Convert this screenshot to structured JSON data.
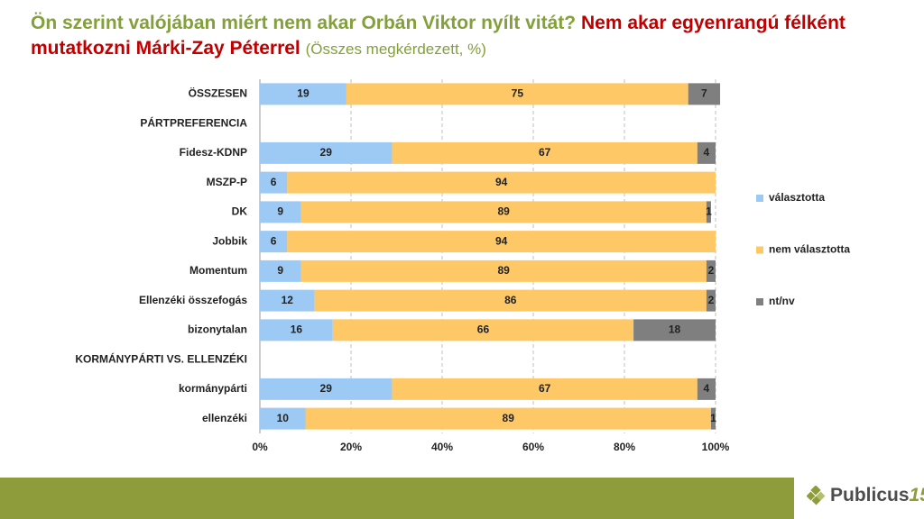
{
  "chart_data": {
    "type": "stacked-barh",
    "title": "Ön szerint valójában miért nem akar Orbán Viktor nyílt vitát?",
    "subtitle": "Nem akar egyenrangú félként mutatkozni Márki-Zay Péterrel",
    "note": "(Összes megkérdezett, %)",
    "categories": [
      "ÖSSZESEN",
      "PÁRTPREFERENCIA",
      "Fidesz-KDNP",
      "MSZP-P",
      "DK",
      "Jobbik",
      "Momentum",
      "Ellenzéki összefogás",
      "bizonytalan",
      "KORMÁNYPÁRTI VS. ELLENZÉKI",
      "kormánypárti",
      "ellenzéki"
    ],
    "series": [
      {
        "name": "választotta",
        "color": "#9dc9f5",
        "values": [
          19,
          null,
          29,
          6,
          9,
          6,
          9,
          12,
          16,
          null,
          29,
          10
        ]
      },
      {
        "name": "nem választotta",
        "color": "#ffc866",
        "values": [
          75,
          null,
          67,
          94,
          89,
          94,
          89,
          86,
          66,
          null,
          67,
          89
        ]
      },
      {
        "name": "nt/nv",
        "color": "#7f7f7f",
        "values": [
          7,
          null,
          4,
          null,
          1,
          null,
          2,
          2,
          18,
          null,
          4,
          1
        ]
      }
    ],
    "xlim": [
      0,
      100
    ],
    "xticks": [
      {
        "value": 0,
        "label": "0%"
      },
      {
        "value": 20,
        "label": "20%"
      },
      {
        "value": 40,
        "label": "40%"
      },
      {
        "value": 60,
        "label": "60%"
      },
      {
        "value": 80,
        "label": "80%"
      },
      {
        "value": 100,
        "label": "100%"
      }
    ],
    "grid": true,
    "legend": "right"
  },
  "logo": {
    "name": "Publicus",
    "number": "15"
  }
}
